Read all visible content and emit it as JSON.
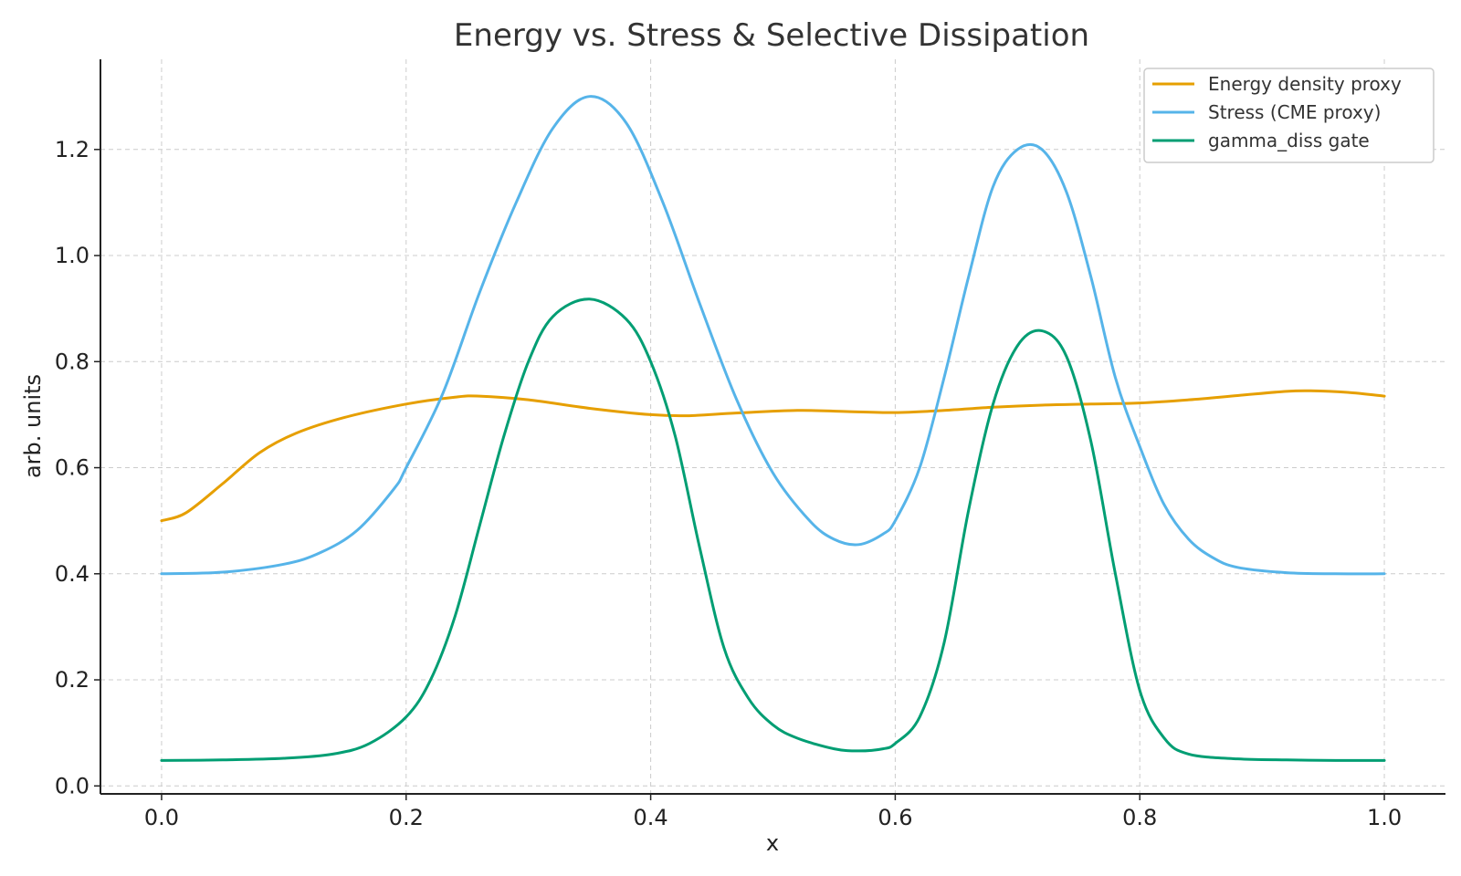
{
  "chart_data": {
    "type": "line",
    "title": "Energy vs. Stress & Selective Dissipation",
    "xlabel": "x",
    "ylabel": "arb. units",
    "xlim": [
      -0.05,
      1.05
    ],
    "ylim": [
      -0.015,
      1.37
    ],
    "xticks": [
      0.0,
      0.2,
      0.4,
      0.6,
      0.8,
      1.0
    ],
    "xtick_labels": [
      "0.0",
      "0.2",
      "0.4",
      "0.6",
      "0.8",
      "1.0"
    ],
    "yticks": [
      0.0,
      0.2,
      0.4,
      0.6,
      0.8,
      1.0,
      1.2
    ],
    "ytick_labels": [
      "0.0",
      "0.2",
      "0.4",
      "0.6",
      "0.8",
      "1.0",
      "1.2"
    ],
    "grid": true,
    "legend_position": "top-right",
    "series": [
      {
        "name": "Energy density proxy",
        "color": "#E69F00",
        "x": [
          0.0,
          0.02,
          0.05,
          0.08,
          0.11,
          0.15,
          0.2,
          0.24,
          0.26,
          0.3,
          0.35,
          0.4,
          0.43,
          0.47,
          0.52,
          0.56,
          0.6,
          0.64,
          0.68,
          0.72,
          0.76,
          0.8,
          0.84,
          0.88,
          0.92,
          0.94,
          0.97,
          1.0
        ],
        "y": [
          0.5,
          0.515,
          0.57,
          0.628,
          0.665,
          0.695,
          0.72,
          0.733,
          0.735,
          0.728,
          0.712,
          0.7,
          0.698,
          0.703,
          0.708,
          0.706,
          0.704,
          0.708,
          0.714,
          0.718,
          0.72,
          0.722,
          0.728,
          0.736,
          0.744,
          0.745,
          0.742,
          0.735
        ]
      },
      {
        "name": "Stress (CME proxy)",
        "color": "#56B4E9",
        "x": [
          0.0,
          0.05,
          0.1,
          0.13,
          0.16,
          0.19,
          0.2,
          0.23,
          0.26,
          0.29,
          0.32,
          0.35,
          0.38,
          0.41,
          0.44,
          0.47,
          0.5,
          0.53,
          0.55,
          0.57,
          0.59,
          0.6,
          0.62,
          0.64,
          0.66,
          0.68,
          0.7,
          0.72,
          0.74,
          0.76,
          0.78,
          0.8,
          0.82,
          0.84,
          0.86,
          0.88,
          0.92,
          0.96,
          1.0
        ],
        "y": [
          0.4,
          0.403,
          0.418,
          0.44,
          0.482,
          0.56,
          0.6,
          0.74,
          0.93,
          1.1,
          1.24,
          1.3,
          1.25,
          1.1,
          0.91,
          0.73,
          0.59,
          0.5,
          0.465,
          0.455,
          0.475,
          0.5,
          0.6,
          0.77,
          0.96,
          1.13,
          1.2,
          1.2,
          1.12,
          0.96,
          0.77,
          0.64,
          0.53,
          0.465,
          0.43,
          0.412,
          0.402,
          0.4,
          0.4
        ]
      },
      {
        "name": "gamma_diss gate",
        "color": "#009E73",
        "x": [
          0.0,
          0.05,
          0.1,
          0.14,
          0.17,
          0.2,
          0.22,
          0.24,
          0.26,
          0.28,
          0.3,
          0.32,
          0.35,
          0.38,
          0.4,
          0.42,
          0.44,
          0.46,
          0.48,
          0.5,
          0.52,
          0.55,
          0.57,
          0.59,
          0.6,
          0.62,
          0.64,
          0.66,
          0.68,
          0.7,
          0.72,
          0.74,
          0.76,
          0.78,
          0.8,
          0.82,
          0.84,
          0.88,
          0.92,
          0.96,
          1.0
        ],
        "y": [
          0.048,
          0.049,
          0.052,
          0.06,
          0.08,
          0.13,
          0.2,
          0.32,
          0.49,
          0.66,
          0.8,
          0.885,
          0.918,
          0.88,
          0.8,
          0.66,
          0.45,
          0.26,
          0.165,
          0.115,
          0.09,
          0.07,
          0.066,
          0.07,
          0.08,
          0.13,
          0.27,
          0.52,
          0.72,
          0.83,
          0.858,
          0.81,
          0.65,
          0.4,
          0.18,
          0.09,
          0.06,
          0.051,
          0.049,
          0.048,
          0.048
        ]
      }
    ]
  }
}
